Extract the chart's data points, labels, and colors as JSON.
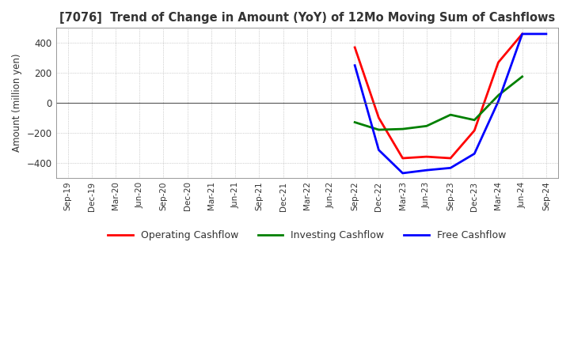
{
  "title": "[7076]  Trend of Change in Amount (YoY) of 12Mo Moving Sum of Cashflows",
  "ylabel": "Amount (million yen)",
  "ylim": [
    -500,
    500
  ],
  "yticks": [
    -400,
    -200,
    0,
    200,
    400
  ],
  "background_color": "#ffffff",
  "plot_bg_color": "#ffffff",
  "grid_color": "#aaaaaa",
  "x_labels": [
    "Sep-19",
    "Dec-19",
    "Mar-20",
    "Jun-20",
    "Sep-20",
    "Dec-20",
    "Mar-21",
    "Jun-21",
    "Sep-21",
    "Dec-21",
    "Mar-22",
    "Jun-22",
    "Sep-22",
    "Dec-22",
    "Mar-23",
    "Jun-23",
    "Sep-23",
    "Dec-23",
    "Mar-24",
    "Jun-24",
    "Sep-24"
  ],
  "op_x": [
    12,
    13,
    14,
    15,
    16,
    17,
    18,
    19
  ],
  "op_y": [
    370,
    -100,
    -370,
    -360,
    -370,
    -185,
    270,
    460
  ],
  "inv_x": [
    12,
    13,
    14,
    15,
    16,
    17,
    18,
    19
  ],
  "inv_y": [
    -130,
    -180,
    -175,
    -155,
    -80,
    -115,
    50,
    175
  ],
  "free_x": [
    12,
    13,
    14,
    15,
    16,
    17,
    18,
    19,
    20
  ],
  "free_y": [
    250,
    -315,
    -470,
    -450,
    -435,
    -340,
    10,
    460,
    460
  ],
  "op_color": "#ff0000",
  "inv_color": "#008000",
  "free_color": "#0000ff",
  "legend_labels": [
    "Operating Cashflow",
    "Investing Cashflow",
    "Free Cashflow"
  ]
}
